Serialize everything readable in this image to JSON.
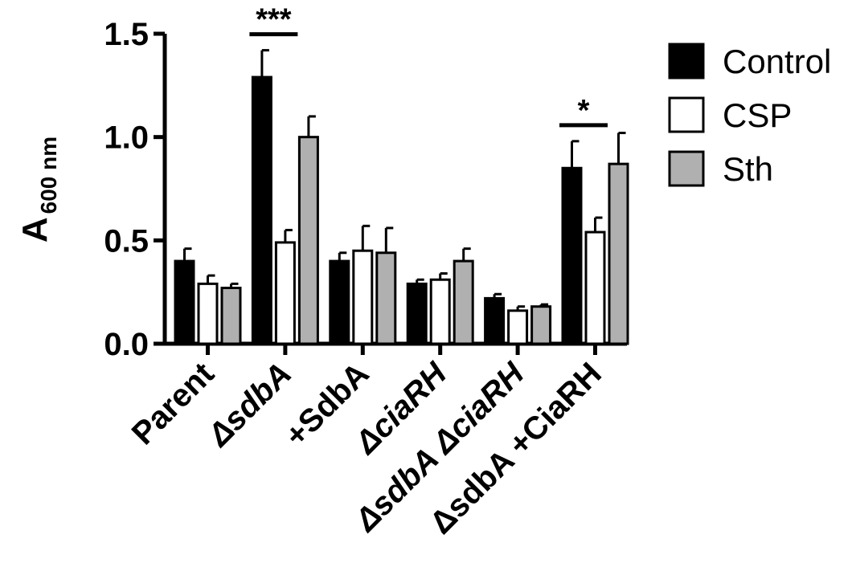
{
  "chart_data": {
    "type": "bar",
    "categories": [
      {
        "text": "Parent",
        "italic": false
      },
      {
        "text": "ΔsdbA",
        "italic": true
      },
      {
        "text": "+SdbA",
        "italic": false
      },
      {
        "text": "ΔciaRH",
        "italic": true
      },
      {
        "text": "ΔsdbA ΔciaRH",
        "italic": true
      },
      {
        "text": "ΔsdbA +CiaRH",
        "italic": false
      }
    ],
    "series": [
      {
        "name": "Control",
        "color": "#000000",
        "values": [
          0.4,
          1.29,
          0.4,
          0.29,
          0.22,
          0.85
        ],
        "errors": [
          0.06,
          0.13,
          0.04,
          0.02,
          0.02,
          0.13
        ]
      },
      {
        "name": "CSP",
        "color": "#ffffff",
        "values": [
          0.29,
          0.49,
          0.45,
          0.31,
          0.16,
          0.54
        ],
        "errors": [
          0.04,
          0.06,
          0.12,
          0.03,
          0.02,
          0.07
        ]
      },
      {
        "name": "Sth",
        "color": "#b0b0b0",
        "values": [
          0.27,
          1.0,
          0.44,
          0.4,
          0.18,
          0.87
        ],
        "errors": [
          0.02,
          0.1,
          0.12,
          0.06,
          0.01,
          0.15
        ]
      }
    ],
    "ylabel_main": "A",
    "ylabel_sub": "600 nm",
    "xlabel": "",
    "ylim": [
      0,
      1.5
    ],
    "yticks": [
      "0.0",
      "0.5",
      "1.0",
      "1.5"
    ],
    "ytick_values": [
      0,
      0.5,
      1.0,
      1.5
    ],
    "legend_position": "right",
    "grid": false,
    "significance": [
      {
        "category_index": 1,
        "label": "***",
        "between": [
          "Control",
          "CSP"
        ]
      },
      {
        "category_index": 5,
        "label": "*",
        "between": [
          "Control",
          "CSP"
        ]
      }
    ]
  }
}
